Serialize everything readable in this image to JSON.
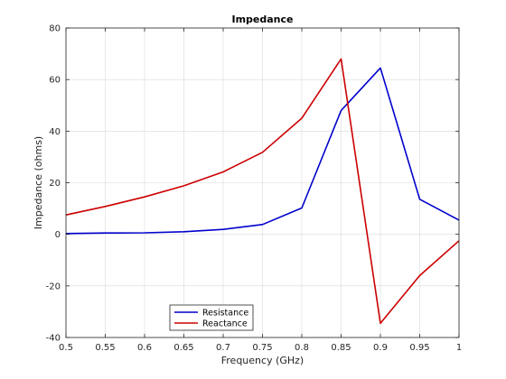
{
  "chart_data": {
    "type": "line",
    "title": "Impedance",
    "xlabel": "Frequency (GHz)",
    "ylabel": "Impedance (ohms)",
    "xlim": [
      0.5,
      1.0
    ],
    "ylim": [
      -40,
      80
    ],
    "xticks": [
      "0.5",
      "0.55",
      "0.6",
      "0.65",
      "0.7",
      "0.75",
      "0.8",
      "0.85",
      "0.9",
      "0.95",
      "1"
    ],
    "xtick_values": [
      0.5,
      0.55,
      0.6,
      0.65,
      0.7,
      0.75,
      0.8,
      0.85,
      0.9,
      0.95,
      1.0
    ],
    "yticks": [
      "-40",
      "-20",
      "0",
      "20",
      "40",
      "60",
      "80"
    ],
    "ytick_values": [
      -40,
      -20,
      0,
      20,
      40,
      60,
      80
    ],
    "grid": true,
    "legend_position": "bottom-left",
    "x": [
      0.5,
      0.55,
      0.6,
      0.65,
      0.7,
      0.75,
      0.8,
      0.85,
      0.9,
      0.95,
      1.0
    ],
    "series": [
      {
        "name": "Resistance",
        "color": "#0000cc",
        "values": [
          0.3,
          0.5,
          0.6,
          1.0,
          1.9,
          3.8,
          10.2,
          48.0,
          64.5,
          13.6,
          5.5
        ]
      },
      {
        "name": "Reactance",
        "color": "#cc0000",
        "values": [
          7.5,
          10.8,
          14.5,
          18.8,
          24.2,
          31.8,
          45.0,
          68.0,
          -34.5,
          -16.0,
          -2.5
        ]
      }
    ]
  }
}
